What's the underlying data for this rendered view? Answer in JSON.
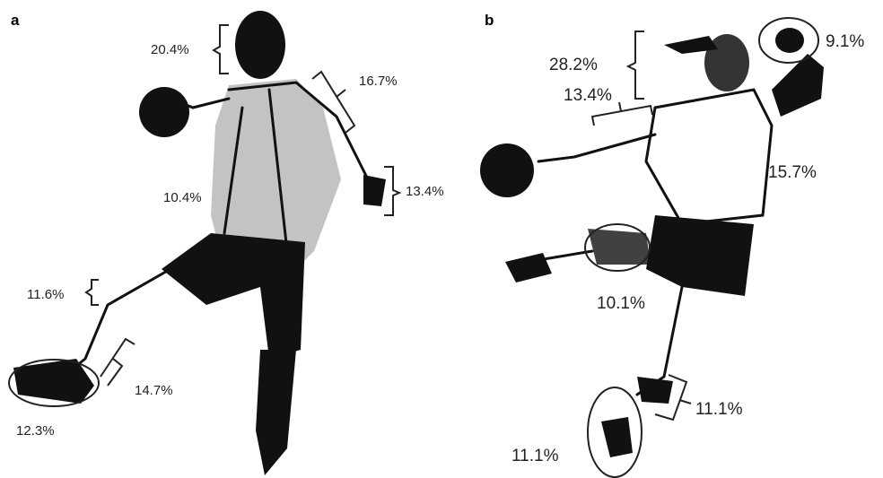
{
  "panels": [
    {
      "label": "a",
      "labels": [
        "20.4%",
        "16.7%",
        "10.4%",
        "13.4%",
        "11.6%",
        "14.7%",
        "12.3%"
      ]
    },
    {
      "label": "b",
      "labels": [
        "28.2%",
        "13.4%",
        "9.1%",
        "15.7%",
        "10.1%",
        "11.1%",
        "11.1%"
      ]
    }
  ]
}
